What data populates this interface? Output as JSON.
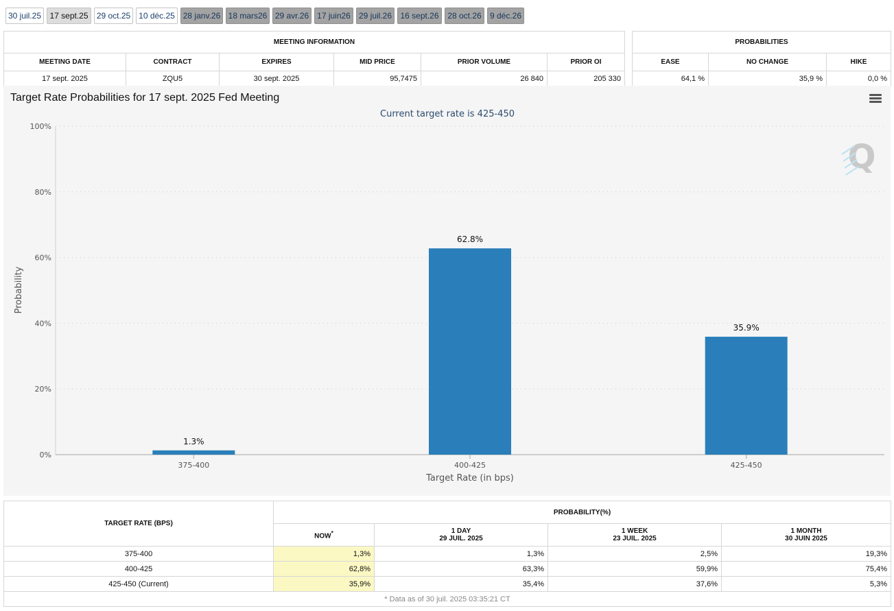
{
  "tabs": [
    {
      "label": "30 juil.25",
      "state": "avail"
    },
    {
      "label": "17 sept.25",
      "state": "active"
    },
    {
      "label": "29 oct.25",
      "state": "avail"
    },
    {
      "label": "10 déc.25",
      "state": "avail"
    },
    {
      "label": "28 janv.26",
      "state": "future"
    },
    {
      "label": "18 mars26",
      "state": "future"
    },
    {
      "label": "29 avr.26",
      "state": "future"
    },
    {
      "label": "17 juin26",
      "state": "future"
    },
    {
      "label": "29 juil.26",
      "state": "future"
    },
    {
      "label": "16 sept.26",
      "state": "future"
    },
    {
      "label": "28 oct.26",
      "state": "future"
    },
    {
      "label": "9 déc.26",
      "state": "future"
    }
  ],
  "meeting_info": {
    "title": "MEETING INFORMATION",
    "headers": [
      "MEETING DATE",
      "CONTRACT",
      "EXPIRES",
      "MID PRICE",
      "PRIOR VOLUME",
      "PRIOR OI"
    ],
    "row": [
      "17 sept. 2025",
      "ZQU5",
      "30 sept. 2025",
      "95,7475",
      "26 840",
      "205 330"
    ]
  },
  "probabilities": {
    "title": "PROBABILITIES",
    "headers": [
      "EASE",
      "NO CHANGE",
      "HIKE"
    ],
    "row": [
      "64,1 %",
      "35,9 %",
      "0,0 %"
    ]
  },
  "chart_data": {
    "type": "bar",
    "title": "Target Rate Probabilities for 17 sept. 2025 Fed Meeting",
    "subtitle": "Current target rate is 425-450",
    "xlabel": "Target Rate (in bps)",
    "ylabel": "Probability",
    "categories": [
      "375-400",
      "400-425",
      "425-450"
    ],
    "values": [
      1.3,
      62.8,
      35.9
    ],
    "data_labels": [
      "1.3%",
      "62.8%",
      "35.9%"
    ],
    "ylim": [
      0,
      100
    ],
    "yticks": [
      0,
      20,
      40,
      60,
      80,
      100
    ],
    "ytick_labels": [
      "0%",
      "20%",
      "40%",
      "60%",
      "80%",
      "100%"
    ],
    "grid": true,
    "bar_color": "#2a7fba",
    "watermark": "Q"
  },
  "bottom_table": {
    "col_target": "TARGET RATE (BPS)",
    "col_prob": "PROBABILITY(%)",
    "sub_headers": [
      {
        "title": "NOW",
        "mark": "*",
        "date": ""
      },
      {
        "title": "1 DAY",
        "mark": "",
        "date": "29 JUIL. 2025"
      },
      {
        "title": "1 WEEK",
        "mark": "",
        "date": "23 JUIL. 2025"
      },
      {
        "title": "1 MONTH",
        "mark": "",
        "date": "30 JUIN 2025"
      }
    ],
    "rows": [
      {
        "rate": "375-400",
        "now": "1,3%",
        "day": "1,3%",
        "week": "2,5%",
        "month": "19,3%"
      },
      {
        "rate": "400-425",
        "now": "62,8%",
        "day": "63,3%",
        "week": "59,9%",
        "month": "75,4%"
      },
      {
        "rate": "425-450 (Current)",
        "now": "35,9%",
        "day": "35,4%",
        "week": "37,6%",
        "month": "5,3%"
      }
    ],
    "footnote": "* Data as of 30 juil. 2025 03:35:21 CT"
  }
}
